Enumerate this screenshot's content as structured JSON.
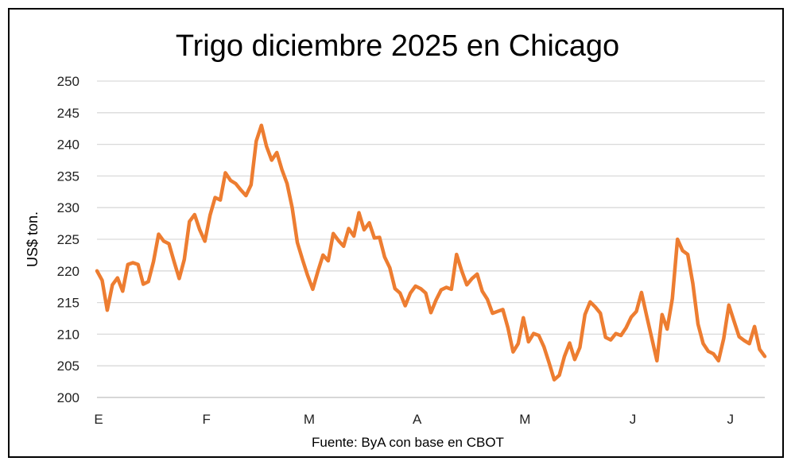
{
  "chart_data": {
    "type": "line",
    "title": "Trigo diciembre 2025 en Chicago",
    "ylabel": "US$ ton.",
    "xlabel": "",
    "source": "Fuente: ByA con base en CBOT",
    "ylim": [
      200,
      250
    ],
    "yticks": [
      200,
      205,
      210,
      215,
      220,
      225,
      230,
      235,
      240,
      245,
      250
    ],
    "grid": true,
    "line_color": "#ED7D31",
    "x_month_labels": [
      "E",
      "F",
      "M",
      "A",
      "M",
      "J",
      "J"
    ],
    "x_month_label_positions": [
      0,
      21,
      41,
      62,
      83,
      104,
      123
    ],
    "series": [
      {
        "values": [
          220.0,
          218.5,
          213.8,
          217.8,
          218.9,
          216.8,
          221.0,
          221.3,
          221.0,
          217.9,
          218.3,
          221.5,
          225.8,
          224.7,
          224.3,
          221.5,
          218.8,
          221.8,
          227.8,
          228.9,
          226.5,
          224.7,
          228.8,
          231.6,
          231.2,
          235.5,
          234.3,
          233.8,
          232.8,
          231.9,
          233.6,
          240.5,
          243.0,
          239.7,
          237.5,
          238.7,
          236.0,
          233.8,
          230.0,
          224.5,
          221.8,
          219.3,
          217.1,
          219.9,
          222.5,
          221.6,
          225.9,
          224.8,
          223.9,
          226.7,
          225.5,
          229.2,
          226.5,
          227.6,
          225.2,
          225.3,
          222.2,
          220.5,
          217.2,
          216.5,
          214.5,
          216.5,
          217.6,
          217.2,
          216.5,
          213.4,
          215.4,
          217.0,
          217.4,
          217.1,
          222.6,
          220.0,
          217.8,
          218.8,
          219.5,
          216.8,
          215.5,
          213.3,
          213.6,
          213.9,
          211.0,
          207.2,
          208.5,
          212.6,
          208.8,
          210.1,
          209.8,
          208.0,
          205.5,
          202.8,
          203.5,
          206.5,
          208.6,
          206.0,
          207.9,
          213.1,
          215.1,
          214.3,
          213.3,
          209.5,
          209.1,
          210.1,
          209.8,
          211.0,
          212.7,
          213.6,
          216.6,
          212.9,
          209.4,
          205.8,
          213.1,
          210.8,
          215.6,
          225.0,
          223.2,
          222.6,
          218.0,
          211.6,
          208.5,
          207.3,
          206.9,
          205.8,
          209.3,
          214.6,
          212.1,
          209.6,
          209.0,
          208.5,
          211.2,
          207.6,
          206.5
        ]
      }
    ]
  }
}
